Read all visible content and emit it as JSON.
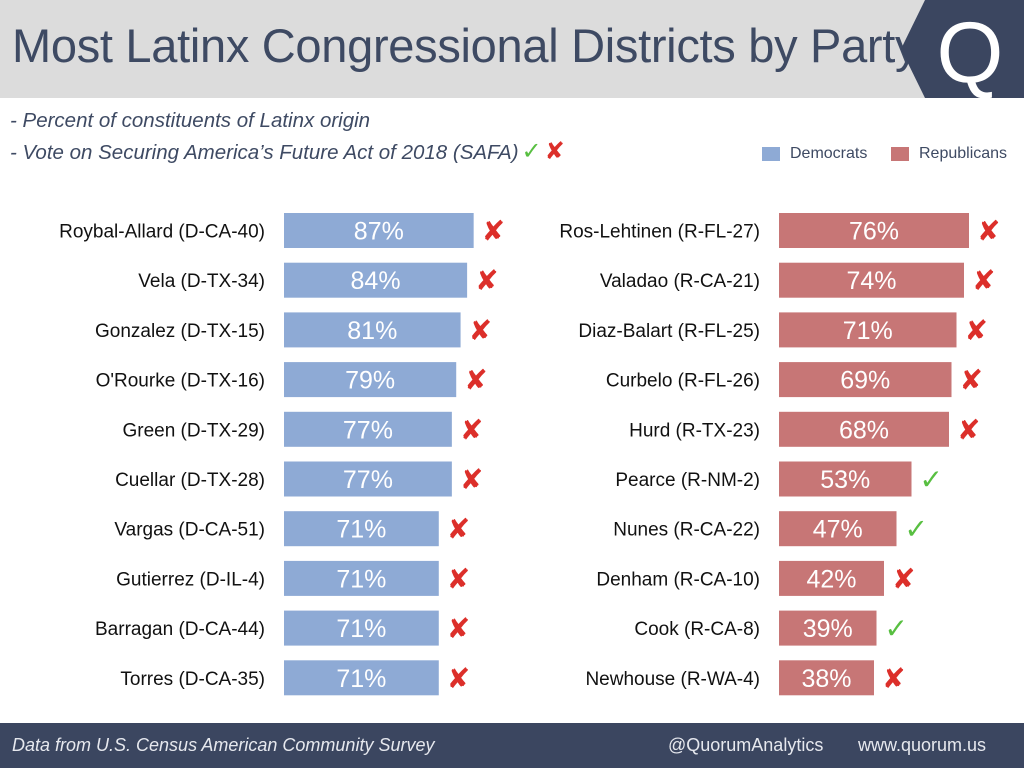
{
  "header": {
    "title": "Most Latinx Congressional Districts by Party",
    "logo_letter": "Q"
  },
  "subtitles": {
    "line1": "- Percent of constituents of Latinx origin",
    "line2": "- Vote on Securing America’s Future Act of 2018 (SAFA)",
    "check_glyph": "✓",
    "cross_glyph": "✘"
  },
  "legend": {
    "democrats": "Democrats",
    "republicans": "Republicans"
  },
  "colors": {
    "democrats": "#8eaad5",
    "republicans": "#c77676",
    "header_bg": "#dcdcdc",
    "navy": "#3b4660",
    "check": "#58bf41",
    "cross": "#dc2f2a"
  },
  "chart_data": [
    {
      "type": "bar",
      "series": [
        {
          "name": "Democrats",
          "categories": [
            "Roybal-Allard (D-CA-40)",
            "Vela (D-TX-34)",
            "Gonzalez (D-TX-15)",
            "O'Rourke (D-TX-16)",
            "Green (D-TX-29)",
            "Cuellar (D-TX-28)",
            "Vargas (D-CA-51)",
            "Gutierrez (D-IL-4)",
            "Barragan (D-CA-44)",
            "Torres (D-CA-35)"
          ],
          "values": [
            87,
            84,
            81,
            79,
            77,
            77,
            71,
            71,
            71,
            71
          ],
          "labels": [
            "87%",
            "84%",
            "81%",
            "79%",
            "77%",
            "77%",
            "71%",
            "71%",
            "71%",
            "71%"
          ],
          "votes": [
            "no",
            "no",
            "no",
            "no",
            "no",
            "no",
            "no",
            "no",
            "no",
            "no"
          ]
        }
      ],
      "unit": "%"
    },
    {
      "type": "bar",
      "series": [
        {
          "name": "Republicans",
          "categories": [
            "Ros-Lehtinen (R-FL-27)",
            "Valadao (R-CA-21)",
            "Diaz-Balart (R-FL-25)",
            "Curbelo (R-FL-26)",
            "Hurd (R-TX-23)",
            "Pearce (R-NM-2)",
            "Nunes (R-CA-22)",
            "Denham (R-CA-10)",
            "Cook (R-CA-8)",
            "Newhouse (R-WA-4)"
          ],
          "values": [
            76,
            74,
            71,
            69,
            68,
            53,
            47,
            42,
            39,
            38
          ],
          "labels": [
            "76%",
            "74%",
            "71%",
            "69%",
            "68%",
            "53%",
            "47%",
            "42%",
            "39%",
            "38%"
          ],
          "votes": [
            "no",
            "no",
            "no",
            "no",
            "no",
            "yes",
            "yes",
            "no",
            "yes",
            "no"
          ]
        }
      ],
      "unit": "%"
    }
  ],
  "footer": {
    "source": "Data from U.S. Census American Community Survey",
    "handle": "@QuorumAnalytics",
    "site": "www.quorum.us"
  }
}
